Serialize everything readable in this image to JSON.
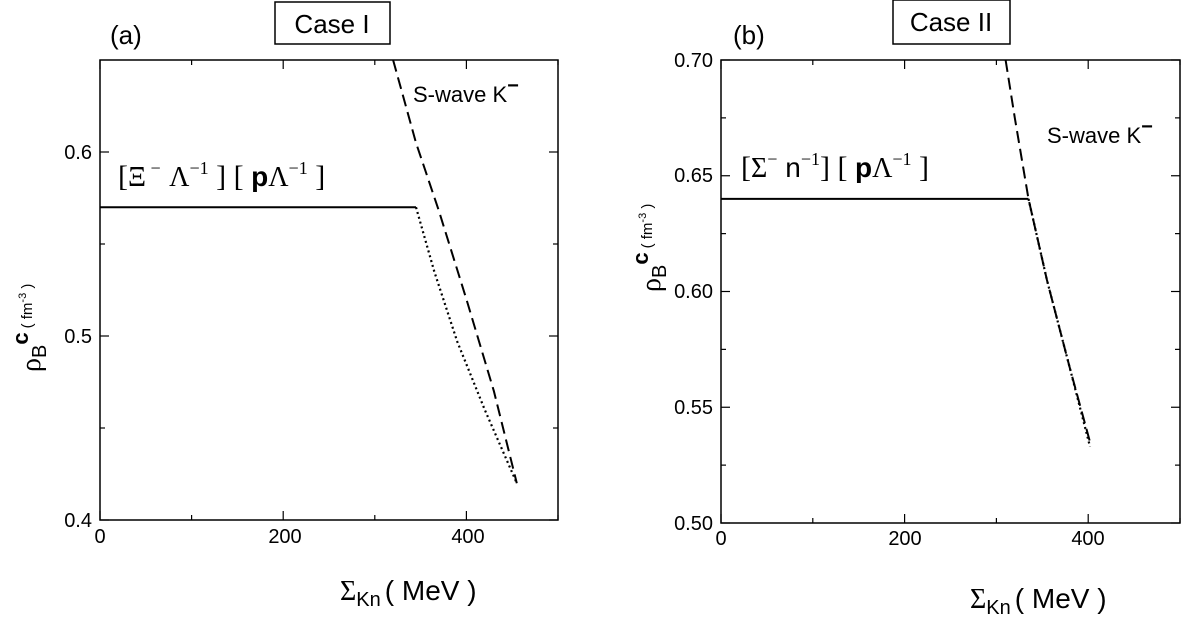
{
  "chart_data": [
    {
      "type": "line",
      "panel_label": "(a)",
      "case_label": "Case I",
      "xlabel": {
        "symbol": "Σ",
        "sub": "Kn",
        "unit": "( MeV )"
      },
      "ylabel": {
        "symbol": "ρ",
        "sub": "B",
        "sup": "c",
        "unit": "( fm",
        "unit_exp": "-3",
        "unit_close": " )"
      },
      "xlim": [
        0,
        500
      ],
      "ylim": [
        0.4,
        0.65
      ],
      "xticks": [
        0,
        200,
        400
      ],
      "yticks": [
        0.4,
        0.5,
        0.6
      ],
      "xtick_labels": [
        "0",
        "200",
        "400"
      ],
      "ytick_labels": [
        "0.4",
        "0.5",
        "0.6"
      ],
      "xminor": [
        100,
        300,
        500
      ],
      "yminor": [
        0.45,
        0.55
      ],
      "series": [
        {
          "style": "solid",
          "x": [
            0,
            345
          ],
          "y": [
            0.57,
            0.57
          ]
        },
        {
          "style": "dashed",
          "x": [
            320,
            345,
            370,
            400,
            430,
            455
          ],
          "y": [
            0.65,
            0.605,
            0.568,
            0.52,
            0.47,
            0.42
          ]
        },
        {
          "style": "dotted",
          "x": [
            345,
            365,
            390,
            420,
            455
          ],
          "y": [
            0.57,
            0.535,
            0.497,
            0.46,
            0.42
          ]
        }
      ],
      "annotations": {
        "left_bracket": "[",
        "xi": "Ξ",
        "xi_sup": " − ",
        "lambda1": "Λ",
        "lambda1_sup": "−1",
        "mid_bracket": " ] [ ",
        "p": "p",
        "lambda2": "Λ",
        "lambda2_sup": "−1",
        "right_bracket": " ]",
        "kaon_text": "S-wave K",
        "kaon_sup": "−"
      }
    },
    {
      "type": "line",
      "panel_label": "(b)",
      "case_label": "Case II",
      "xlabel": {
        "symbol": "Σ",
        "sub": "Kn",
        "unit": "( MeV )"
      },
      "ylabel": {
        "symbol": "ρ",
        "sub": "B",
        "sup": "c",
        "unit": "( fm",
        "unit_exp": "-3",
        "unit_close": " )"
      },
      "xlim": [
        0,
        500
      ],
      "ylim": [
        0.5,
        0.7
      ],
      "xticks": [
        0,
        200,
        400
      ],
      "yticks": [
        0.5,
        0.55,
        0.6,
        0.65,
        0.7
      ],
      "xtick_labels": [
        "0",
        "200",
        "400"
      ],
      "ytick_labels": [
        "0.50",
        "0.55",
        "0.60",
        "0.65",
        "0.70"
      ],
      "xminor": [
        100,
        300,
        500
      ],
      "yminor": [
        0.525,
        0.575,
        0.625,
        0.675
      ],
      "series": [
        {
          "style": "solid",
          "x": [
            0,
            335
          ],
          "y": [
            0.64,
            0.64
          ]
        },
        {
          "style": "dashed",
          "x": [
            310,
            320,
            335,
            355,
            380,
            402
          ],
          "y": [
            0.7,
            0.675,
            0.64,
            0.605,
            0.567,
            0.535
          ]
        },
        {
          "style": "dotted",
          "x": [
            335,
            355,
            380,
            402
          ],
          "y": [
            0.64,
            0.605,
            0.567,
            0.533
          ]
        }
      ],
      "annotations": {
        "left_bracket": "[",
        "sigma": "Σ",
        "sigma_sup": "−",
        "n": " n",
        "n_sup": "−1",
        "mid_bracket": "] [ ",
        "p": "p",
        "lambda": "Λ",
        "lambda_sup": "−1",
        "right_bracket": " ]",
        "kaon_text": "S-wave K",
        "kaon_sup": "−"
      }
    }
  ]
}
